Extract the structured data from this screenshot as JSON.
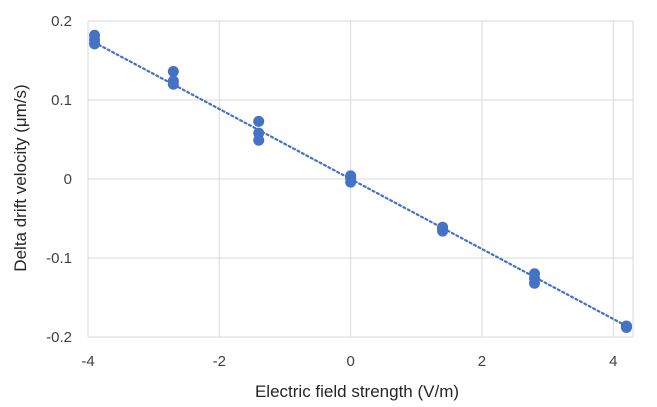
{
  "chart_data": {
    "type": "scatter",
    "xlabel": "Electric field strength (V/m)",
    "ylabel": "Delta drift velocity (μm/s)",
    "xlim": [
      -4,
      4.3
    ],
    "ylim": [
      -0.2,
      0.2
    ],
    "x_ticks": [
      -4,
      -2,
      0,
      2,
      4
    ],
    "x_tick_labels": [
      "-4",
      "-2",
      "0",
      "2",
      "4"
    ],
    "y_ticks": [
      -0.2,
      -0.1,
      0,
      0.1,
      0.2
    ],
    "y_tick_labels": [
      "-0.2",
      "-0.1",
      "0",
      "0.1",
      "0.2"
    ],
    "grid": true,
    "legend": "none",
    "marker_color": "#4472c4",
    "trendline": {
      "style": "dotted",
      "kind": "linear",
      "color": "#4472c4",
      "slope": -0.0443,
      "intercept": 0
    },
    "series": [
      {
        "x": [
          -3.9,
          -3.9,
          -3.9,
          -2.7,
          -2.7,
          -2.7,
          -1.4,
          -1.4,
          -1.4,
          0,
          0,
          0,
          1.4,
          1.4,
          1.4,
          2.8,
          2.8,
          2.8,
          4.2,
          4.2,
          4.2
        ],
        "y": [
          0.182,
          0.176,
          0.171,
          0.136,
          0.124,
          0.12,
          0.073,
          0.058,
          0.049,
          0.004,
          0.001,
          -0.004,
          -0.061,
          -0.063,
          -0.066,
          -0.12,
          -0.126,
          -0.132,
          -0.186,
          -0.187,
          -0.188
        ]
      }
    ]
  }
}
